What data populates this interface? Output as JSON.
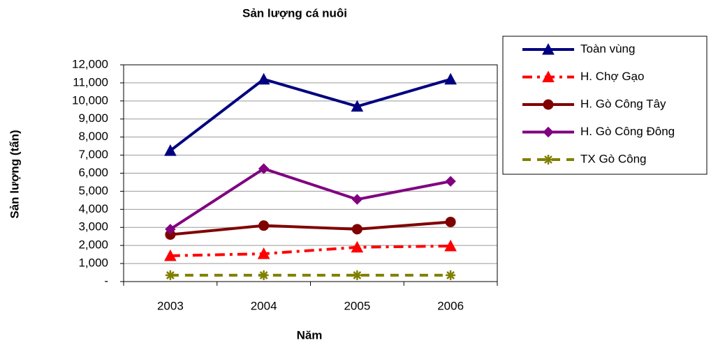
{
  "chart_data": {
    "type": "line",
    "title": "Sản lượng cá nuôi",
    "x_label": "Năm",
    "y_label": "Sản lượng (tấn)",
    "categories": [
      "2003",
      "2004",
      "2005",
      "2006"
    ],
    "series": [
      {
        "name": "Toàn vùng",
        "color": "#000080",
        "marker": "triangle",
        "dash": "solid",
        "values": [
          7250,
          11200,
          9700,
          11200
        ]
      },
      {
        "name": "H. Chợ Gạo",
        "color": "#ff0000",
        "marker": "triangle",
        "dash": "dashdot",
        "values": [
          1430,
          1540,
          1900,
          1970
        ]
      },
      {
        "name": "H. Gò Công Tây",
        "color": "#800000",
        "marker": "circle",
        "dash": "solid",
        "values": [
          2600,
          3100,
          2900,
          3300
        ]
      },
      {
        "name": "H. Gò Công Đông",
        "color": "#800080",
        "marker": "diamond",
        "dash": "solid",
        "values": [
          2900,
          6250,
          4550,
          5550
        ]
      },
      {
        "name": "TX Gò Công",
        "color": "#808000",
        "marker": "asterisk",
        "dash": "dashed",
        "values": [
          350,
          350,
          350,
          350
        ]
      }
    ],
    "ylim": [
      0,
      12000
    ],
    "yticks": [
      {
        "value": 0,
        "label": "-"
      },
      {
        "value": 1000,
        "label": "1,000"
      },
      {
        "value": 2000,
        "label": "2,000"
      },
      {
        "value": 3000,
        "label": "3,000"
      },
      {
        "value": 4000,
        "label": "4,000"
      },
      {
        "value": 5000,
        "label": "5,000"
      },
      {
        "value": 6000,
        "label": "6,000"
      },
      {
        "value": 7000,
        "label": "7,000"
      },
      {
        "value": 8000,
        "label": "8,000"
      },
      {
        "value": 9000,
        "label": "9,000"
      },
      {
        "value": 10000,
        "label": "10,000"
      },
      {
        "value": 11000,
        "label": "11,000"
      },
      {
        "value": 12000,
        "label": "12,000"
      }
    ],
    "grid": true,
    "legend": "right"
  }
}
